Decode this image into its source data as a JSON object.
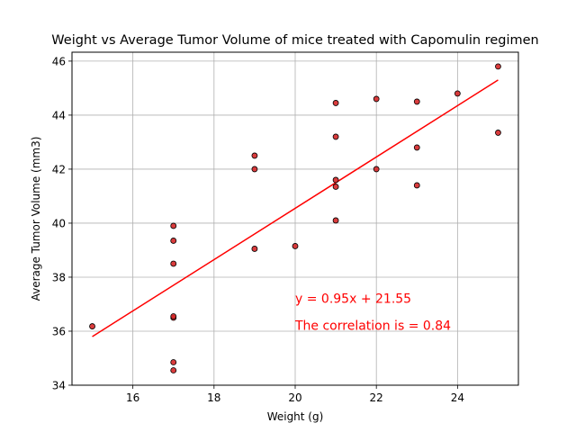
{
  "chart_data": {
    "type": "scatter",
    "title": "Weight vs Average Tumor Volume of mice treated with Capomulin regimen",
    "xlabel": "Weight (g)",
    "ylabel": "Average Tumor Volume (mm3)",
    "xlim": [
      14.5,
      25.5
    ],
    "ylim": [
      34,
      46.33
    ],
    "xticks": [
      16,
      18,
      20,
      22,
      24
    ],
    "yticks": [
      34,
      36,
      38,
      40,
      42,
      44,
      46
    ],
    "grid": true,
    "colors": {
      "point_fill": "#d62728",
      "point_edge": "#000000",
      "regression": "#ff0000",
      "grid": "#b0b0b0"
    },
    "points": [
      {
        "x": 15,
        "y": 36.18
      },
      {
        "x": 17,
        "y": 39.9
      },
      {
        "x": 17,
        "y": 39.35
      },
      {
        "x": 17,
        "y": 38.5
      },
      {
        "x": 17,
        "y": 36.5
      },
      {
        "x": 17,
        "y": 36.55
      },
      {
        "x": 17,
        "y": 34.85
      },
      {
        "x": 17,
        "y": 34.55
      },
      {
        "x": 19,
        "y": 42.5
      },
      {
        "x": 19,
        "y": 42.0
      },
      {
        "x": 19,
        "y": 39.05
      },
      {
        "x": 20,
        "y": 39.15
      },
      {
        "x": 21,
        "y": 44.45
      },
      {
        "x": 21,
        "y": 43.2
      },
      {
        "x": 21,
        "y": 41.6
      },
      {
        "x": 21,
        "y": 41.35
      },
      {
        "x": 21,
        "y": 40.1
      },
      {
        "x": 22,
        "y": 44.6
      },
      {
        "x": 22,
        "y": 42.0
      },
      {
        "x": 23,
        "y": 44.5
      },
      {
        "x": 23,
        "y": 42.8
      },
      {
        "x": 23,
        "y": 41.4
      },
      {
        "x": 24,
        "y": 44.8
      },
      {
        "x": 25,
        "y": 45.8
      },
      {
        "x": 25,
        "y": 43.35
      }
    ],
    "regression": {
      "slope": 0.95,
      "intercept": 21.55,
      "x_range": [
        15,
        25
      ]
    },
    "annotations": [
      {
        "text": "y = 0.95x + 21.55",
        "x": 20,
        "y": 37.05,
        "color": "#ff0000"
      },
      {
        "text": "The correlation is = 0.84",
        "x": 20,
        "y": 36.05,
        "color": "#ff0000"
      }
    ]
  }
}
